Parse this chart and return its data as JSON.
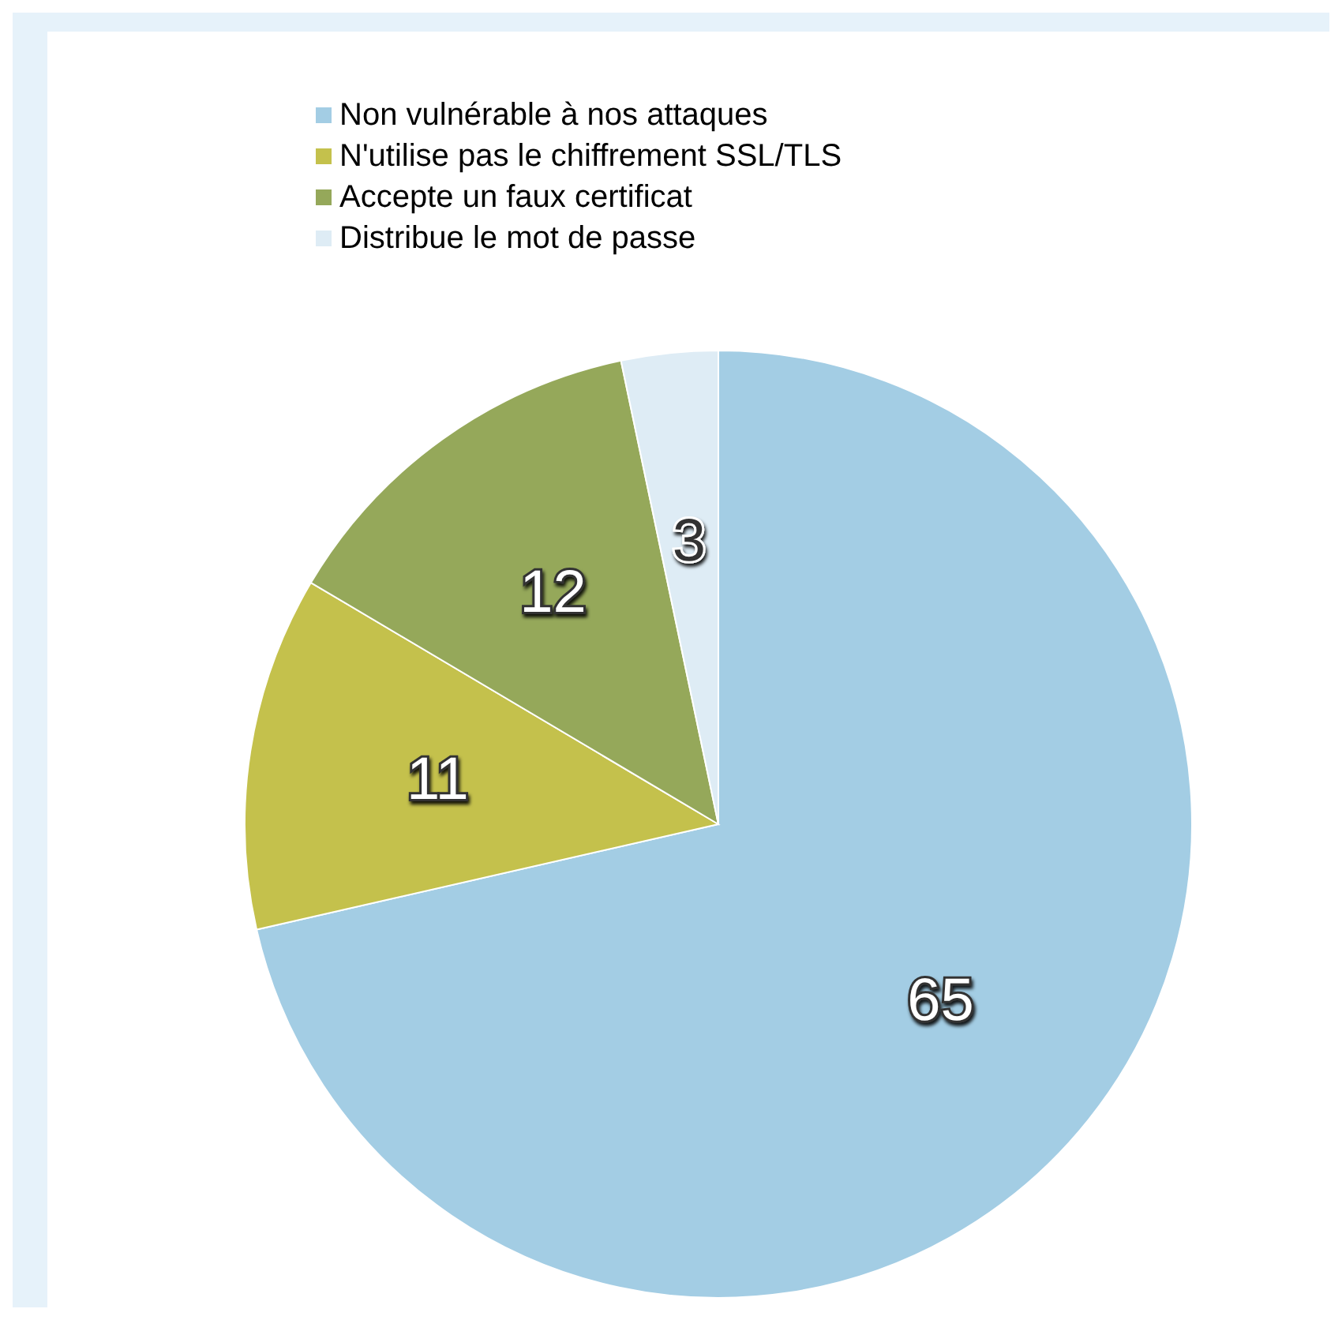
{
  "chart_data": {
    "type": "pie",
    "categories": [
      "Non vulnérable à nos attaques",
      "N'utilise pas le chiffrement SSL/TLS",
      "Accepte un faux certificat",
      "Distribue le mot de passe"
    ],
    "values": [
      65,
      11,
      12,
      3
    ],
    "colors": [
      "#a3cde4",
      "#c4c14c",
      "#95a85a",
      "#deecf5"
    ],
    "data_labels": true,
    "legend": "top"
  }
}
